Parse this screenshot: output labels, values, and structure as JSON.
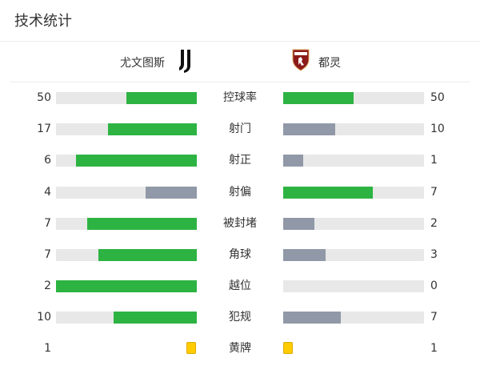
{
  "title": "技术统计",
  "home": {
    "name": "尤文图斯",
    "logo": "juventus-logo"
  },
  "away": {
    "name": "都灵",
    "logo": "torino-logo"
  },
  "colors": {
    "win": "#2db342",
    "lose": "#9199a8",
    "track": "#e8e8e8",
    "yellow": "#ffcc00"
  },
  "stats": [
    {
      "label": "控球率",
      "home": 50,
      "away": 50
    },
    {
      "label": "射门",
      "home": 17,
      "away": 10
    },
    {
      "label": "射正",
      "home": 6,
      "away": 1
    },
    {
      "label": "射偏",
      "home": 4,
      "away": 7
    },
    {
      "label": "被封堵",
      "home": 7,
      "away": 2
    },
    {
      "label": "角球",
      "home": 7,
      "away": 3
    },
    {
      "label": "越位",
      "home": 2,
      "away": 0
    },
    {
      "label": "犯规",
      "home": 10,
      "away": 7
    }
  ],
  "cards": {
    "label": "黄牌",
    "home": 1,
    "away": 1
  }
}
